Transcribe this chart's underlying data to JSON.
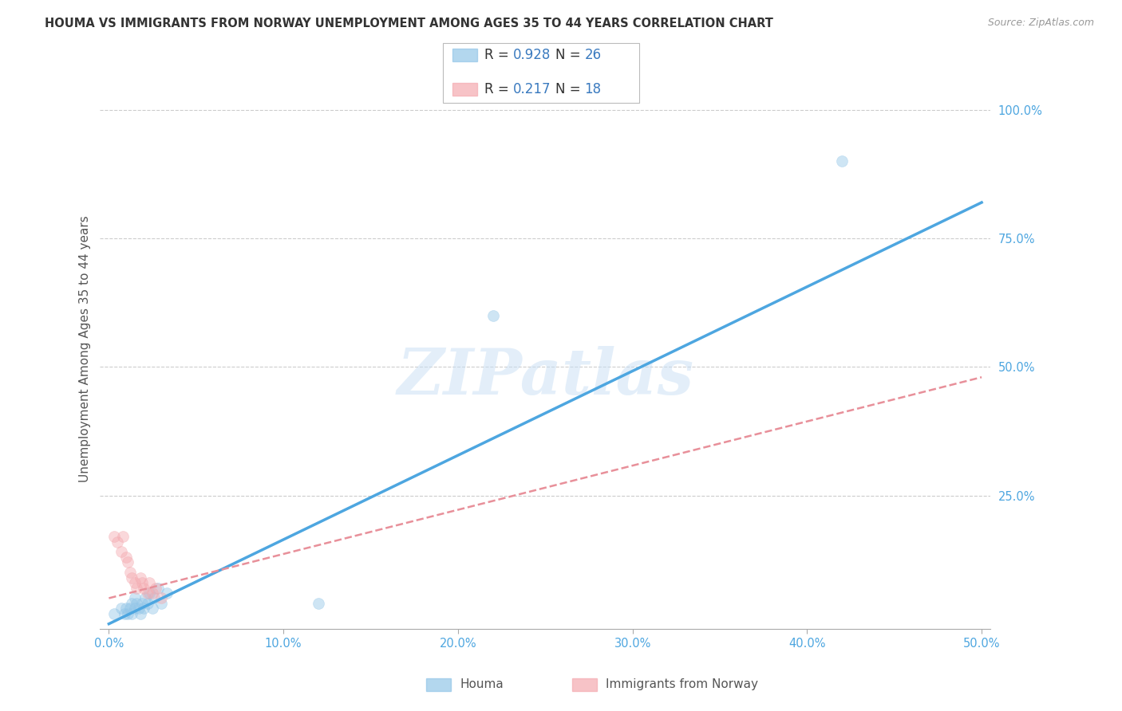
{
  "title": "HOUMA VS IMMIGRANTS FROM NORWAY UNEMPLOYMENT AMONG AGES 35 TO 44 YEARS CORRELATION CHART",
  "source": "Source: ZipAtlas.com",
  "ylabel_label": "Unemployment Among Ages 35 to 44 years",
  "xlim": [
    -0.005,
    0.505
  ],
  "ylim": [
    -0.01,
    1.08
  ],
  "xticks": [
    0.0,
    0.1,
    0.2,
    0.3,
    0.4,
    0.5
  ],
  "xticklabels": [
    "0.0%",
    "10.0%",
    "20.0%",
    "30.0%",
    "40.0%",
    "50.0%"
  ],
  "yticks": [
    0.25,
    0.5,
    0.75,
    1.0
  ],
  "yticklabels": [
    "25.0%",
    "50.0%",
    "75.0%",
    "100.0%"
  ],
  "houma_R": 0.928,
  "houma_N": 26,
  "norway_R": 0.217,
  "norway_N": 18,
  "houma_color": "#93c6e8",
  "norway_color": "#f4aab0",
  "houma_line_color": "#4da6e0",
  "norway_line_color": "#e8909a",
  "legend_text_color": "#3a7abf",
  "label_dark_color": "#333333",
  "axis_tick_color": "#4da6e0",
  "watermark": "ZIPatlas",
  "houma_x": [
    0.003,
    0.007,
    0.009,
    0.01,
    0.011,
    0.012,
    0.013,
    0.013,
    0.015,
    0.015,
    0.016,
    0.017,
    0.018,
    0.019,
    0.02,
    0.021,
    0.022,
    0.023,
    0.025,
    0.026,
    0.028,
    0.03,
    0.033,
    0.12,
    0.42,
    0.22
  ],
  "houma_y": [
    0.02,
    0.03,
    0.02,
    0.03,
    0.02,
    0.03,
    0.04,
    0.02,
    0.03,
    0.05,
    0.04,
    0.03,
    0.02,
    0.04,
    0.03,
    0.05,
    0.04,
    0.06,
    0.03,
    0.05,
    0.07,
    0.04,
    0.06,
    0.04,
    0.9,
    0.6
  ],
  "norway_x": [
    0.003,
    0.005,
    0.007,
    0.008,
    0.01,
    0.011,
    0.012,
    0.013,
    0.015,
    0.016,
    0.018,
    0.019,
    0.02,
    0.022,
    0.023,
    0.025,
    0.027,
    0.03
  ],
  "norway_y": [
    0.17,
    0.16,
    0.14,
    0.17,
    0.13,
    0.12,
    0.1,
    0.09,
    0.08,
    0.07,
    0.09,
    0.08,
    0.07,
    0.06,
    0.08,
    0.06,
    0.07,
    0.05
  ],
  "houma_line_x": [
    0.0,
    0.5
  ],
  "houma_line_y": [
    0.0,
    0.82
  ],
  "norway_line_x": [
    0.0,
    0.5
  ],
  "norway_line_y": [
    0.05,
    0.48
  ],
  "background_color": "#ffffff",
  "grid_color": "#cccccc",
  "marker_size": 100,
  "marker_alpha": 0.45
}
